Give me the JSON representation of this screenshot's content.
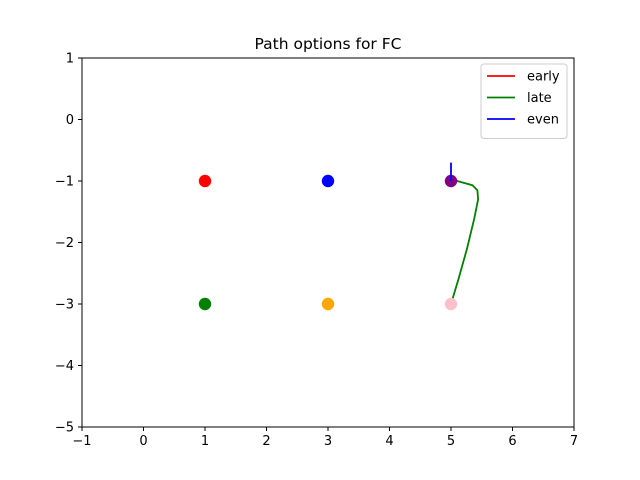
{
  "chart_data": {
    "type": "scatter",
    "title": "Path options for FC",
    "xlabel": "",
    "ylabel": "",
    "xlim": [
      -1,
      7
    ],
    "ylim": [
      -5,
      1
    ],
    "xticks": [
      -1,
      0,
      1,
      2,
      3,
      4,
      5,
      6,
      7
    ],
    "yticks": [
      1,
      0,
      -1,
      -2,
      -3,
      -4,
      -5
    ],
    "grid": false,
    "legend_position": "top-right",
    "points": [
      {
        "x": 1,
        "y": -1,
        "color": "#ff0000"
      },
      {
        "x": 3,
        "y": -1,
        "color": "#0000ff"
      },
      {
        "x": 5,
        "y": -1,
        "color": "#800080"
      },
      {
        "x": 1,
        "y": -3,
        "color": "#008000"
      },
      {
        "x": 3,
        "y": -3,
        "color": "#ffa500"
      },
      {
        "x": 5,
        "y": -3,
        "color": "#ffc0cb"
      }
    ],
    "series": [
      {
        "name": "early",
        "color": "#ff0000",
        "x": [],
        "y": []
      },
      {
        "name": "late",
        "color": "#008000",
        "x": [
          5.0,
          5.12,
          5.26,
          5.38,
          5.44,
          5.43,
          5.35,
          5.1,
          5.0
        ],
        "y": [
          -3.0,
          -2.6,
          -2.1,
          -1.6,
          -1.3,
          -1.15,
          -1.07,
          -1.0,
          -0.97
        ]
      },
      {
        "name": "even",
        "color": "#0000ff",
        "x": [
          5.0,
          5.0
        ],
        "y": [
          -1.0,
          -0.7
        ]
      }
    ]
  }
}
